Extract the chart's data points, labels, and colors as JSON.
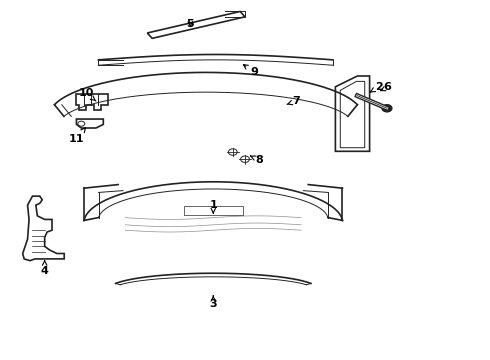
{
  "bg_color": "#ffffff",
  "line_color": "#222222",
  "fig_width": 4.9,
  "fig_height": 3.6,
  "dpi": 100,
  "label_fontsize": 8
}
